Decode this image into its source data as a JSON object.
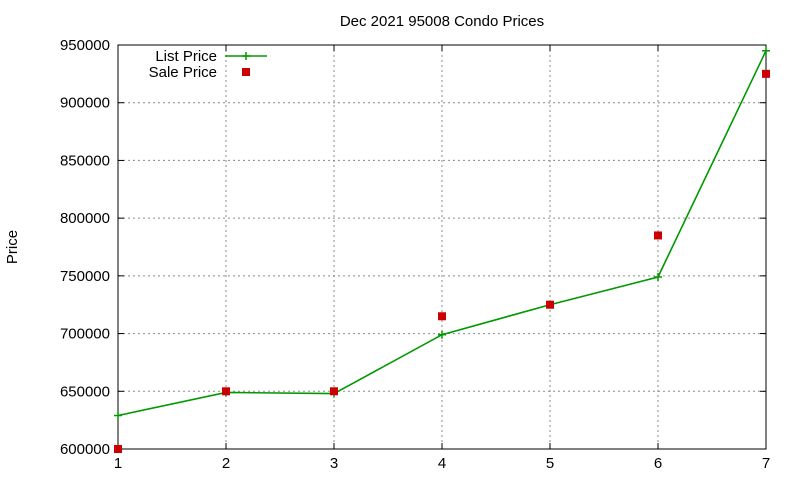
{
  "chart_data": {
    "type": "line",
    "title": "Dec 2021 95008 Condo Prices",
    "xlabel": "",
    "ylabel": "Price",
    "x": [
      1,
      2,
      3,
      4,
      5,
      6,
      7
    ],
    "xlim": [
      1,
      7
    ],
    "ylim": [
      600000,
      950000
    ],
    "xticks": [
      "1",
      "2",
      "3",
      "4",
      "5",
      "6",
      "7"
    ],
    "yticks": [
      "600000",
      "650000",
      "700000",
      "750000",
      "800000",
      "850000",
      "900000",
      "950000"
    ],
    "grid": true,
    "legend_position": "top-left",
    "series": [
      {
        "name": "List Price",
        "style": "line-with-plus-markers",
        "color": "#009900",
        "values": [
          629000,
          649000,
          648000,
          699000,
          725000,
          749000,
          945000
        ]
      },
      {
        "name": "Sale Price",
        "style": "square-markers",
        "color": "#cc0000",
        "values": [
          600000,
          650000,
          650000,
          715000,
          725000,
          785000,
          925000
        ]
      }
    ]
  }
}
